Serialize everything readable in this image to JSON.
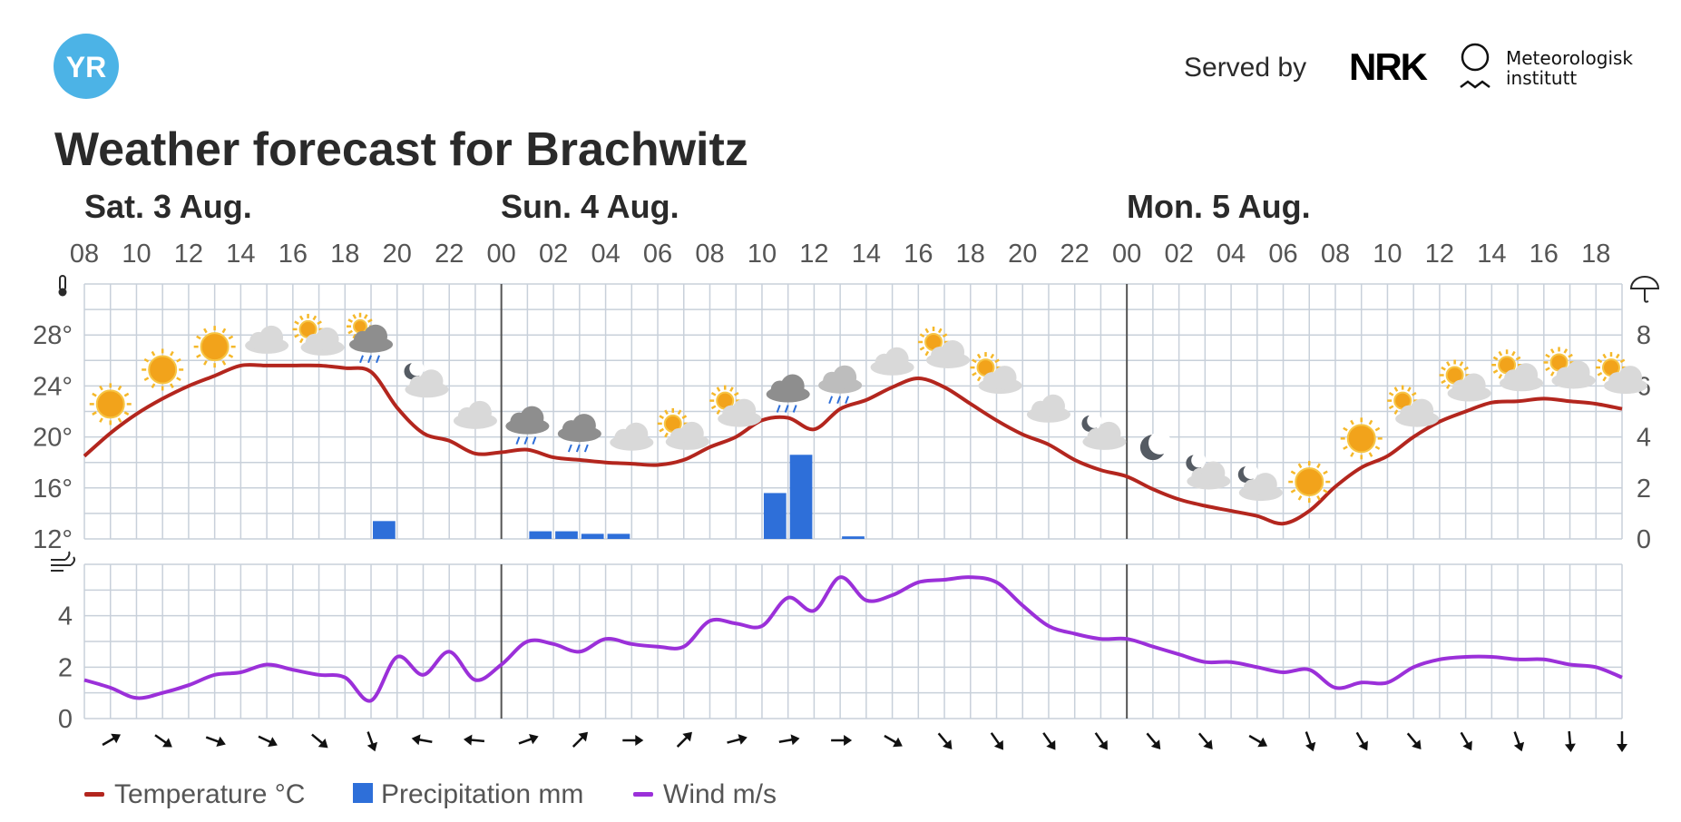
{
  "logo_text": "YR",
  "served_by": "Served by",
  "nrk_text": "NRK",
  "met_line1": "Meteorologisk",
  "met_line2": "institutt",
  "title": "Weather forecast for Brachwitz",
  "days": [
    "Sat. 3 Aug.",
    "Sun. 4 Aug.",
    "Mon. 5 Aug."
  ],
  "legend": {
    "temperature": "Temperature °C",
    "precipitation": "Precipitation mm",
    "wind": "Wind m/s"
  },
  "colors": {
    "temperature": "#b3261e",
    "precipitation": "#2e6fd9",
    "wind": "#9b30d9",
    "grid": "#c8d0da",
    "logo": "#4cb3e6"
  },
  "chart_data": {
    "type": "line",
    "x": [
      "08",
      "09",
      "10",
      "11",
      "12",
      "13",
      "14",
      "15",
      "16",
      "17",
      "18",
      "19",
      "20",
      "21",
      "22",
      "23",
      "00",
      "01",
      "02",
      "03",
      "04",
      "05",
      "06",
      "07",
      "08",
      "09",
      "10",
      "11",
      "12",
      "13",
      "14",
      "15",
      "16",
      "17",
      "18",
      "19",
      "20",
      "21",
      "22",
      "23",
      "00",
      "01",
      "02",
      "03",
      "04",
      "05",
      "06",
      "07",
      "08",
      "09",
      "10",
      "11",
      "12",
      "13",
      "14",
      "15",
      "16",
      "17",
      "18",
      "19"
    ],
    "x_tick_labels": [
      "08",
      "10",
      "12",
      "14",
      "16",
      "18",
      "20",
      "22",
      "00",
      "02",
      "04",
      "06",
      "08",
      "10",
      "12",
      "14",
      "16",
      "18",
      "20",
      "22",
      "00",
      "02",
      "04",
      "06",
      "08",
      "10",
      "12",
      "14",
      "16",
      "18"
    ],
    "temperature": {
      "name": "Temperature °C",
      "values": [
        18.5,
        20.3,
        21.8,
        23.0,
        24.0,
        24.8,
        25.6,
        25.6,
        25.6,
        25.6,
        25.4,
        25.1,
        22.3,
        20.3,
        19.7,
        18.7,
        18.8,
        19.0,
        18.4,
        18.2,
        18.0,
        17.9,
        17.8,
        18.2,
        19.2,
        20.0,
        21.3,
        21.5,
        20.6,
        22.2,
        22.9,
        23.9,
        24.6,
        23.9,
        22.6,
        21.3,
        20.2,
        19.4,
        18.2,
        17.4,
        16.9,
        15.9,
        15.1,
        14.6,
        14.2,
        13.8,
        13.2,
        14.2,
        16.1,
        17.6,
        18.5,
        20.0,
        21.2,
        22.0,
        22.7,
        22.8,
        23.0,
        22.8,
        22.6,
        22.2
      ],
      "axis_ticks": [
        12,
        16,
        20,
        24,
        28
      ],
      "axis_tick_labels": [
        "12°",
        "16°",
        "20°",
        "24°",
        "28°"
      ],
      "ylim": [
        12,
        32
      ]
    },
    "precipitation": {
      "name": "Precipitation mm",
      "values": [
        0,
        0,
        0,
        0,
        0,
        0,
        0,
        0,
        0,
        0,
        0,
        0.7,
        0,
        0,
        0,
        0,
        0,
        0.3,
        0.3,
        0.2,
        0.2,
        0,
        0,
        0,
        0,
        0,
        1.8,
        3.3,
        0,
        0.1,
        0,
        0,
        0,
        0,
        0,
        0,
        0,
        0,
        0,
        0,
        0,
        0,
        0,
        0,
        0,
        0,
        0,
        0,
        0,
        0,
        0,
        0,
        0,
        0,
        0,
        0,
        0,
        0,
        0,
        0
      ],
      "axis_ticks": [
        0,
        2,
        4,
        6,
        8
      ],
      "ylim": [
        0,
        10
      ]
    },
    "wind": {
      "name": "Wind m/s",
      "values": [
        1.5,
        1.2,
        0.8,
        1.0,
        1.3,
        1.7,
        1.8,
        2.1,
        1.9,
        1.7,
        1.6,
        0.7,
        2.4,
        1.7,
        2.6,
        1.5,
        2.1,
        3.0,
        2.9,
        2.6,
        3.1,
        2.9,
        2.8,
        2.8,
        3.8,
        3.7,
        3.6,
        4.7,
        4.2,
        5.5,
        4.6,
        4.8,
        5.3,
        5.4,
        5.5,
        5.3,
        4.4,
        3.6,
        3.3,
        3.1,
        3.1,
        2.8,
        2.5,
        2.2,
        2.2,
        2.0,
        1.8,
        1.9,
        1.2,
        1.4,
        1.4,
        2.0,
        2.3,
        2.4,
        2.4,
        2.3,
        2.3,
        2.1,
        2.0,
        1.6
      ],
      "axis_ticks": [
        0,
        2,
        4
      ],
      "ylim": [
        0,
        6
      ]
    },
    "wind_direction_arrows_deg": [
      60,
      125,
      110,
      115,
      130,
      160,
      -80,
      -85,
      70,
      45,
      90,
      45,
      75,
      80,
      90,
      120,
      140,
      145,
      145,
      145,
      140,
      140,
      120,
      160,
      150,
      140,
      150,
      160,
      175,
      180
    ],
    "weather_icons": [
      "sun",
      "sun",
      "sun",
      "cloud",
      "partly-cloudy-sun",
      "rain-cloud-sun",
      "cloud-moon",
      "cloud",
      "rain-cloud",
      "rain-cloud",
      "cloud",
      "partly-cloudy-sun",
      "partly-cloudy-sun",
      "rain-cloud",
      "light-rain-cloud",
      "cloud",
      "partly-cloudy-sun",
      "partly-cloudy-sun",
      "cloud",
      "cloud-moon",
      "moon",
      "cloud-moon",
      "cloud-moon",
      "sun",
      "sun",
      "partly-cloudy-sun",
      "partly-cloudy-sun",
      "partly-cloudy-sun",
      "partly-cloudy-sun",
      "partly-cloudy-sun"
    ],
    "grid": true,
    "legend_position": "bottom-left"
  }
}
